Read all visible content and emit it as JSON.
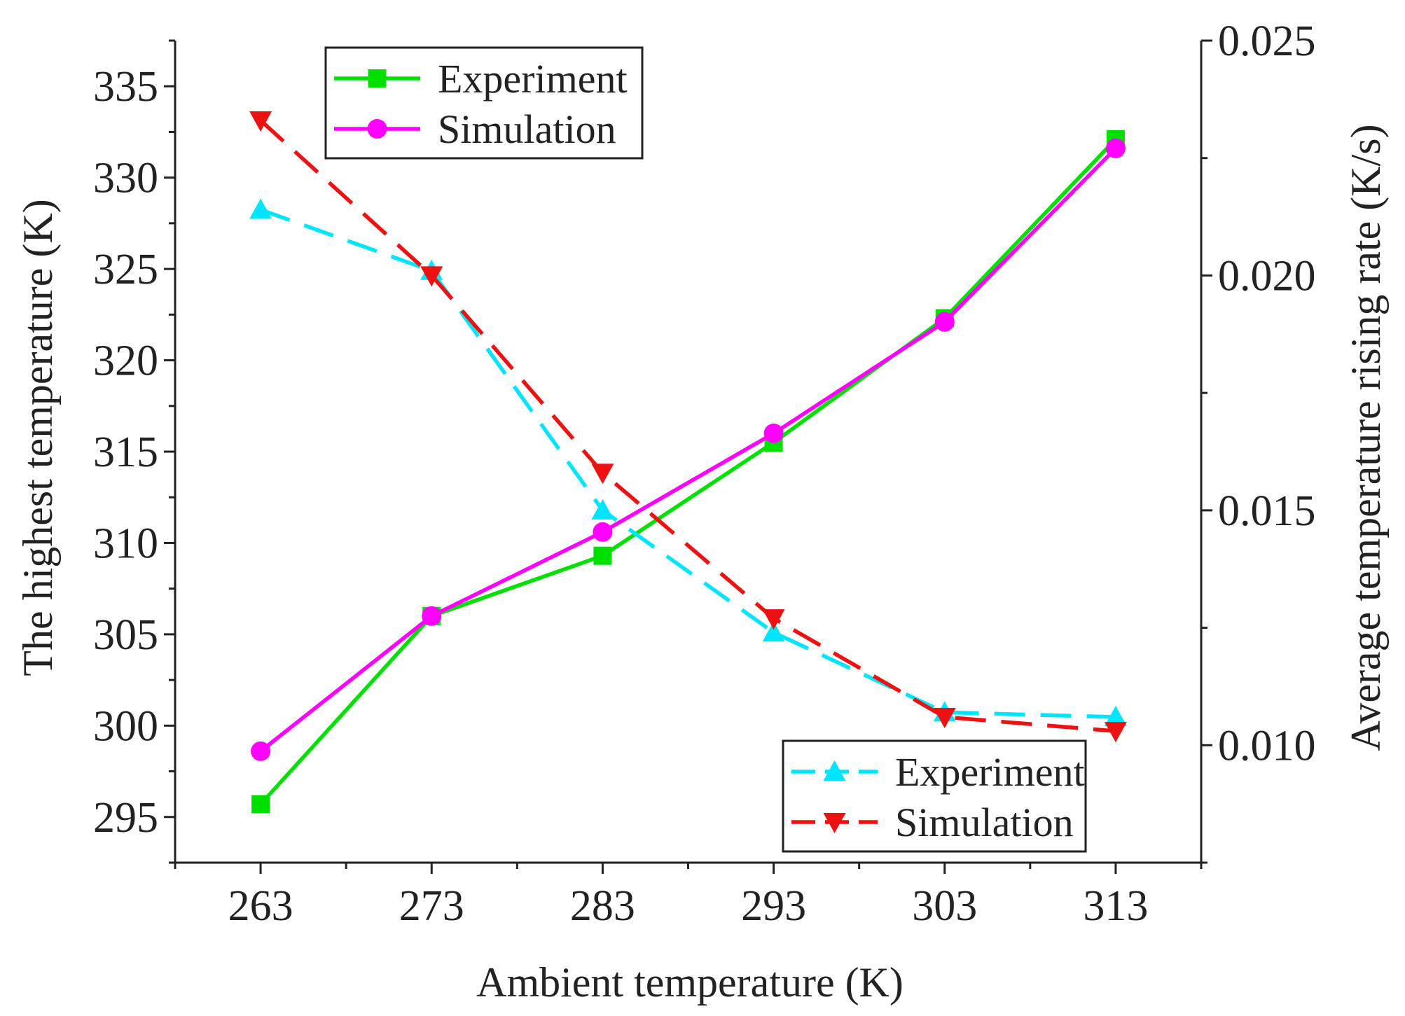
{
  "chart_data": {
    "type": "line",
    "x": [
      263,
      273,
      283,
      293,
      303,
      313
    ],
    "xlabel": "Ambient temperature (K)",
    "ylabel": "The highest temperature (K)",
    "y2label": "Average temperature rising rate (K/s)",
    "xlim": [
      258,
      318
    ],
    "ylim": [
      292.5,
      337.5
    ],
    "y2lim": [
      0.0075,
      0.025
    ],
    "xticks": [
      "263",
      "273",
      "283",
      "293",
      "303",
      "313"
    ],
    "yticks": [
      "295",
      "300",
      "305",
      "310",
      "315",
      "320",
      "325",
      "330",
      "335"
    ],
    "y2ticks": [
      "0.010",
      "0.015",
      "0.020",
      "0.025"
    ],
    "series": [
      {
        "name": "Experiment",
        "axis": "left",
        "marker": "square",
        "style": "solid",
        "color": "#00e000",
        "values": [
          295.7,
          306.0,
          309.3,
          315.5,
          322.3,
          332.1
        ]
      },
      {
        "name": "Simulation",
        "axis": "left",
        "marker": "circle",
        "style": "solid",
        "color": "#ff00ff",
        "values": [
          298.6,
          306.0,
          310.6,
          316.0,
          322.1,
          331.6
        ]
      },
      {
        "name": "Experiment",
        "axis": "right",
        "marker": "triangle-up",
        "style": "dashed",
        "color": "#00e5ff",
        "values": [
          0.0214,
          0.0201,
          0.015,
          0.0124,
          0.0107,
          0.0106
        ]
      },
      {
        "name": "Simulation",
        "axis": "right",
        "marker": "triangle-down",
        "style": "dashed",
        "color": "#ee1111",
        "values": [
          0.0233,
          0.02,
          0.0158,
          0.0127,
          0.0106,
          0.0103
        ]
      }
    ],
    "legends": [
      {
        "position": "top-left",
        "entries": [
          0,
          1
        ]
      },
      {
        "position": "bottom-right",
        "entries": [
          2,
          3
        ]
      }
    ],
    "grid": false
  }
}
